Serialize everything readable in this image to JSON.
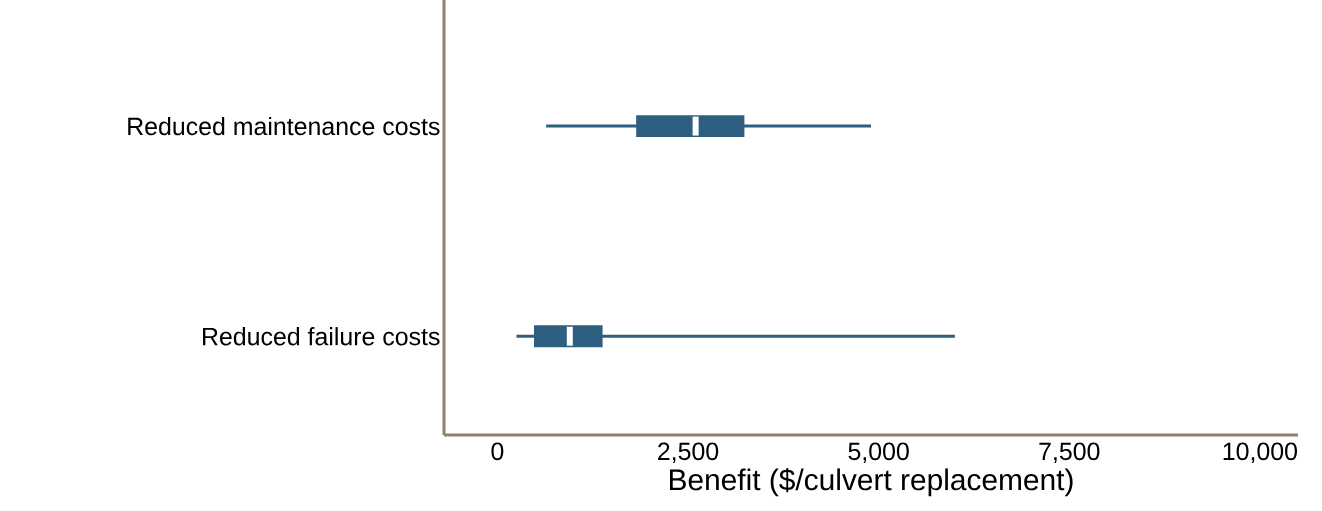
{
  "chart_data": {
    "type": "box",
    "orientation": "horizontal",
    "categories": [
      "Reduced maintenance costs",
      "Reduced failure costs"
    ],
    "boxes": [
      {
        "low": 640,
        "q1": 1840,
        "median": 2600,
        "q3": 3220,
        "high": 4900
      },
      {
        "low": 250,
        "q1": 500,
        "median": 950,
        "q3": 1360,
        "high": 6000
      }
    ],
    "color": "#2f5f80",
    "xlabel": "Benefit ($/culvert replacement)",
    "xlim": [
      -700,
      10500
    ],
    "xticks": [
      0,
      {
        "value": 2500,
        "label": "2,500"
      },
      {
        "value": 5000,
        "label": "5,000"
      },
      {
        "value": 7500,
        "label": "7,500"
      },
      {
        "value": 10000,
        "label": "10,000"
      }
    ]
  }
}
